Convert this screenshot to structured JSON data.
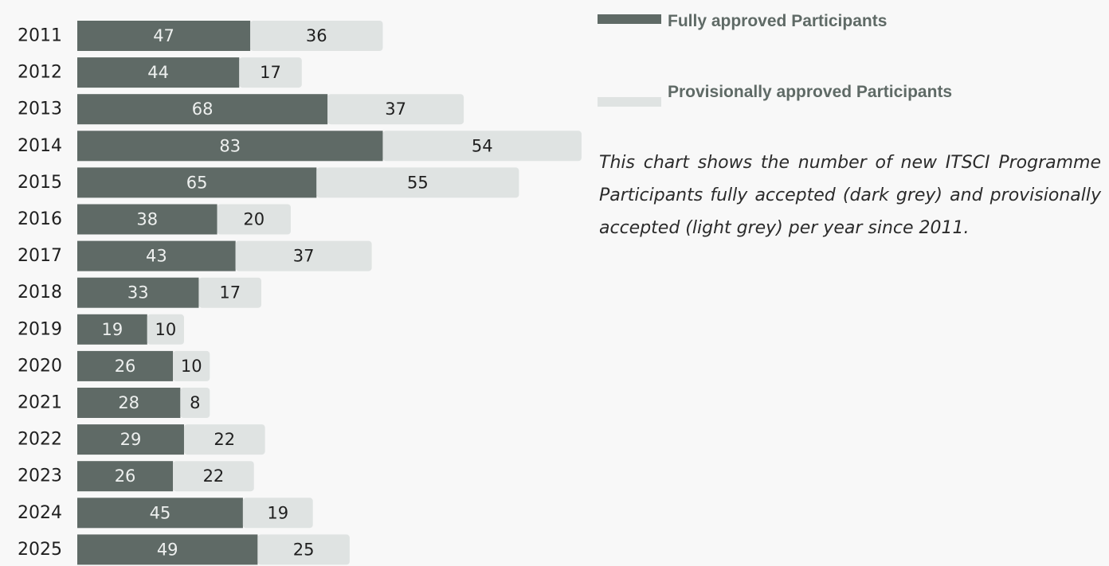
{
  "legend": {
    "fully_label": "Fully approved Participants",
    "provisional_label": "Provisionally approved Participants"
  },
  "description": "This chart shows the number of new ITSCI Programme Participants fully accepted (dark grey) and provisionally accepted (light grey) per year since 2011.",
  "colors": {
    "fully": "#5f6a66",
    "provisional": "#dfe3e2",
    "background": "#f8f8f8"
  },
  "chart_data": {
    "type": "bar",
    "orientation": "horizontal",
    "stacked": true,
    "categories": [
      "2011",
      "2012",
      "2013",
      "2014",
      "2015",
      "2016",
      "2017",
      "2018",
      "2019",
      "2020",
      "2021",
      "2022",
      "2023",
      "2024",
      "2025"
    ],
    "series": [
      {
        "name": "Fully approved Participants",
        "values": [
          47,
          44,
          68,
          83,
          65,
          38,
          43,
          33,
          19,
          26,
          28,
          29,
          26,
          45,
          49
        ]
      },
      {
        "name": "Provisionally approved Participants",
        "values": [
          36,
          17,
          37,
          54,
          55,
          20,
          37,
          17,
          10,
          10,
          8,
          22,
          22,
          19,
          25
        ]
      }
    ],
    "title": "",
    "xlabel": "",
    "ylabel": "",
    "grid": false,
    "legend_position": "top-right"
  }
}
